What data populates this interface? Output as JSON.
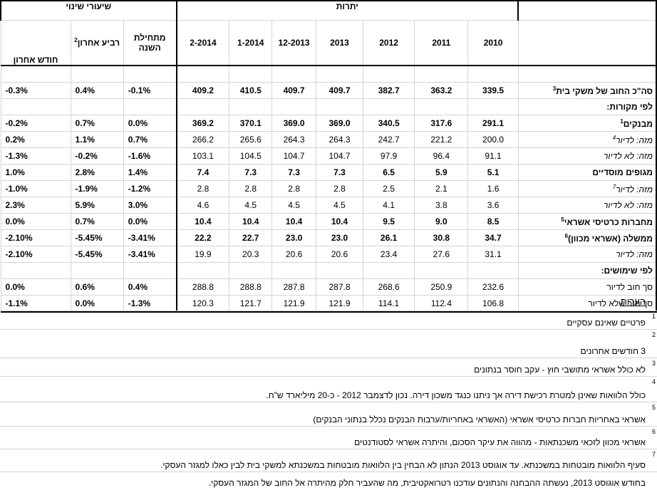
{
  "header": {
    "group_balances": "יתרות",
    "group_change": "שיעורי שינוי",
    "cols": [
      "2010",
      "2011",
      "2012",
      "2013",
      "12-2013",
      "1-2014",
      "2-2014"
    ],
    "change_cols": [
      "מתחילת השנה",
      "רביע אחרון",
      "חודש אחרון"
    ],
    "change_sup": "2"
  },
  "rows": [
    {
      "label": "סה\"כ החוב של משקי בית",
      "sup": "3",
      "vals": [
        "339.5",
        "363.2",
        "382.7",
        "409.7",
        "409.7",
        "410.5",
        "409.2"
      ],
      "chg": [
        "-0.1%",
        "0.4%",
        "-0.3%"
      ],
      "style": "bold"
    },
    {
      "label": "לפי מקורות:",
      "vals": [],
      "chg": [],
      "style": "section"
    },
    {
      "label": "מבנקים",
      "sup": "1",
      "vals": [
        "291.1",
        "317.6",
        "340.5",
        "369.0",
        "369.0",
        "370.1",
        "369.2"
      ],
      "chg": [
        "0.0%",
        "0.7%",
        "-0.2%"
      ],
      "style": "bold"
    },
    {
      "label": "מזה: לדיור",
      "sup": "4",
      "vals": [
        "200.0",
        "221.2",
        "242.7",
        "264.3",
        "264.3",
        "265.6",
        "266.2"
      ],
      "chg": [
        "0.7%",
        "1.1%",
        "0.2%"
      ],
      "style": "italic"
    },
    {
      "label": "מזה: לא לדיור",
      "vals": [
        "91.1",
        "96.4",
        "97.9",
        "104.7",
        "104.7",
        "104.5",
        "103.1"
      ],
      "chg": [
        "-1.6%",
        "-0.2%",
        "-1.3%"
      ],
      "style": "italic"
    },
    {
      "label": "מגופים מוסדיים",
      "vals": [
        "5.1",
        "5.9",
        "6.5",
        "7.3",
        "7.3",
        "7.3",
        "7.4"
      ],
      "chg": [
        "1.4%",
        "2.8%",
        "1.0%"
      ],
      "style": "bold"
    },
    {
      "label": "מזה: לדיור",
      "sup": "7",
      "vals": [
        "1.6",
        "2.1",
        "2.5",
        "2.8",
        "2.8",
        "2.8",
        "2.8"
      ],
      "chg": [
        "-1.2%",
        "-1.9%",
        "-1.0%"
      ],
      "style": "italic"
    },
    {
      "label": "מזה: לא לדיור",
      "vals": [
        "3.6",
        "3.8",
        "4.1",
        "4.5",
        "4.5",
        "4.5",
        "4.6"
      ],
      "chg": [
        "3.0%",
        "5.9%",
        "2.3%"
      ],
      "style": "italic"
    },
    {
      "label": "מחברות כרטיסי אשראי",
      "sup": "5",
      "vals": [
        "8.5",
        "9.0",
        "9.5",
        "10.4",
        "10.4",
        "10.4",
        "10.4"
      ],
      "chg": [
        "0.0%",
        "0.7%",
        "0.0%"
      ],
      "style": "bold"
    },
    {
      "label": "ממשלה (אשראי מכוון)",
      "sup": "6",
      "vals": [
        "34.7",
        "30.8",
        "26.1",
        "23.0",
        "23.0",
        "22.7",
        "22.2"
      ],
      "chg": [
        "-3.41%",
        "-5.45%",
        "-2.10%"
      ],
      "style": "bold"
    },
    {
      "label": "מזה: לדיור",
      "vals": [
        "31.1",
        "27.6",
        "23.4",
        "20.6",
        "20.6",
        "20.3",
        "19.9"
      ],
      "chg": [
        "-3.41%",
        "-5.45%",
        "-2.10%"
      ],
      "style": "italic"
    },
    {
      "label": "לפי שימושים:",
      "vals": [],
      "chg": [],
      "style": "section"
    },
    {
      "label": "סך חוב לדיור",
      "vals": [
        "232.6",
        "250.9",
        "268.6",
        "287.8",
        "287.8",
        "288.8",
        "288.8"
      ],
      "chg": [
        "0.4%",
        "0.6%",
        "0.0%"
      ],
      "style": "plain"
    },
    {
      "label": "סך חוב שלא לדיור",
      "vals": [
        "106.8",
        "112.4",
        "114.1",
        "121.9",
        "121.9",
        "121.7",
        "120.3"
      ],
      "chg": [
        "-1.3%",
        "0.0%",
        "-1.1%"
      ],
      "style": "plain"
    }
  ],
  "notes_title": "הערות",
  "notes": [
    {
      "n": "1",
      "text": "פרטיים שאינם עסקיים"
    },
    {
      "n": "2",
      "text": "3 חודשים אחרונים"
    },
    {
      "n": "3",
      "text": "לא כולל אשראי מתושבי חוץ - עקב חוסר בנתונים"
    },
    {
      "n": "4",
      "text": "כולל הלוואות שאינן למטרת רכישת דירה אך ניתנו כנגד משכון דירה. נכון לדצמבר 2012 - כ-20 מיליארד ש\"ח."
    },
    {
      "n": "5",
      "text": "אשראי באחריות חברות כרטיסי אשראי (האשראי באחריות/ערבות הבנקים נכלל בנתוני הבנקים)"
    },
    {
      "n": "6",
      "text": "אשראי מכוון לזכאי משכנתאות - מהווה את עיקר הסכום, והיתרה אשראי לסטודנטים"
    },
    {
      "n": "7",
      "text": "סעיף הלוואות מובטחות במשכנתא. עד אוגוסט 2013 הנתון לא הבחין בין הלוואות מובטחות במשכנתא למשקי בית לבין כאלו למגזר העסקי."
    },
    {
      "n": "",
      "text": "בחודש אוגוסט 2013, נעשתה ההבחנה והנתונים עודכנו רטרואקטיבית, מה שהעביר חלק מהיתרה אל החוב של המגזר העסקי."
    }
  ]
}
